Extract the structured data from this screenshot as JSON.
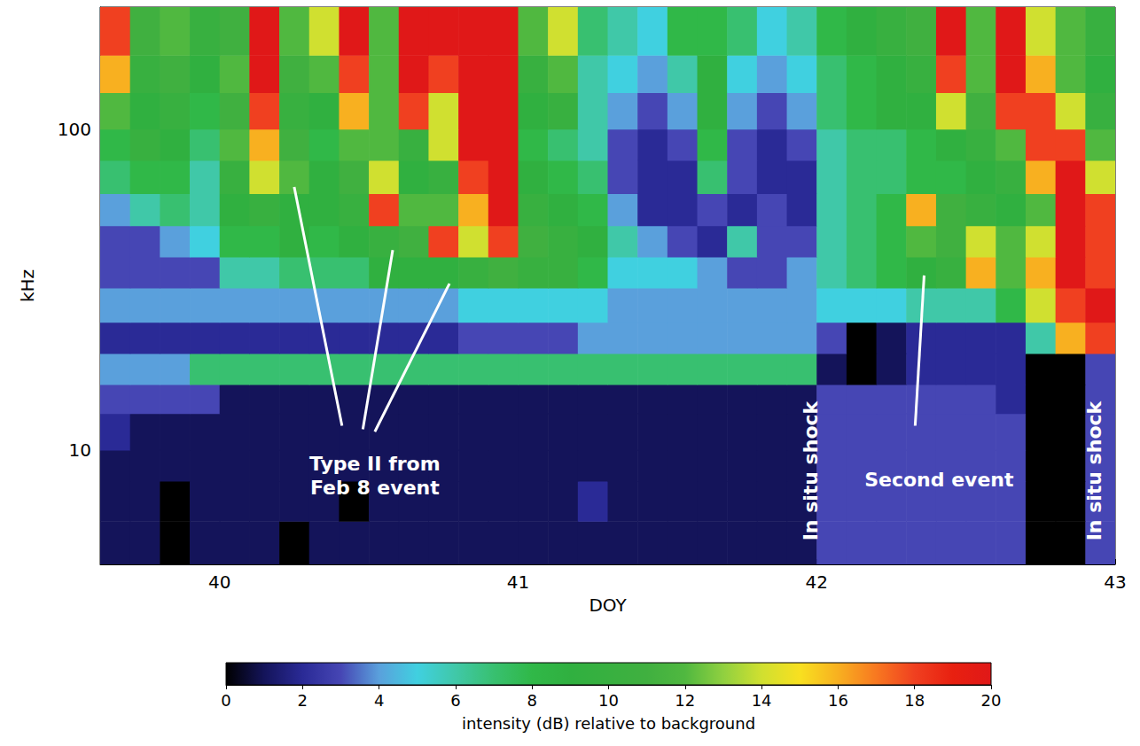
{
  "chart_data": {
    "type": "heatmap",
    "xlabel": "DOY",
    "ylabel": "kHz",
    "log": "y",
    "grid": false,
    "xlim": [
      39.6,
      43
    ],
    "ylim": [
      4.4,
      240
    ],
    "xticks": [
      40,
      41,
      42,
      43
    ],
    "yticks": [
      10,
      100
    ],
    "x": [
      39.6,
      39.7,
      39.8,
      39.9,
      40.0,
      40.1,
      40.2,
      40.3,
      40.4,
      40.5,
      40.6,
      40.7,
      40.8,
      40.9,
      41.0,
      41.1,
      41.2,
      41.3,
      41.4,
      41.5,
      41.6,
      41.7,
      41.8,
      41.9,
      42.0,
      42.1,
      42.2,
      42.3,
      42.4,
      42.5,
      42.6,
      42.7,
      42.8,
      42.9,
      43.0
    ],
    "y": [
      4.4,
      6,
      8,
      10,
      13,
      16,
      20,
      25,
      32,
      40,
      50,
      63,
      80,
      100,
      130,
      170,
      240
    ],
    "cells": [
      [
        1,
        1,
        0,
        1,
        1,
        1,
        0,
        1,
        1,
        1,
        1,
        1,
        1,
        1,
        1,
        1,
        1,
        1,
        1,
        1,
        1,
        1,
        1,
        1,
        3,
        3,
        3,
        3,
        3,
        3,
        3,
        0,
        0,
        3
      ],
      [
        1,
        1,
        0,
        1,
        1,
        1,
        1,
        1,
        0,
        1,
        1,
        1,
        1,
        1,
        1,
        1,
        2,
        1,
        1,
        1,
        1,
        1,
        1,
        1,
        3,
        3,
        3,
        3,
        3,
        3,
        3,
        0,
        0,
        3
      ],
      [
        1,
        1,
        1,
        1,
        1,
        1,
        1,
        1,
        1,
        1,
        1,
        1,
        1,
        1,
        1,
        1,
        1,
        1,
        1,
        1,
        1,
        1,
        1,
        1,
        3,
        3,
        3,
        3,
        3,
        3,
        3,
        0,
        0,
        3
      ],
      [
        2,
        1,
        1,
        1,
        1,
        1,
        1,
        1,
        1,
        1,
        1,
        1,
        1,
        1,
        1,
        1,
        1,
        1,
        1,
        1,
        1,
        1,
        1,
        1,
        3,
        3,
        3,
        3,
        3,
        3,
        3,
        0,
        0,
        3
      ],
      [
        3,
        3,
        3,
        3,
        1,
        1,
        1,
        1,
        1,
        1,
        1,
        1,
        1,
        1,
        1,
        1,
        1,
        1,
        1,
        1,
        1,
        1,
        1,
        1,
        3,
        3,
        3,
        3,
        3,
        3,
        2,
        0,
        0,
        3
      ],
      [
        4,
        4,
        4,
        7,
        7,
        7,
        7,
        7,
        7,
        7,
        7,
        7,
        7,
        7,
        7,
        7,
        7,
        7,
        7,
        7,
        7,
        7,
        7,
        7,
        1,
        0,
        1,
        2,
        2,
        2,
        2,
        0,
        0,
        3
      ],
      [
        2,
        2,
        2,
        2,
        2,
        2,
        2,
        2,
        2,
        2,
        2,
        2,
        3,
        3,
        3,
        3,
        4,
        4,
        4,
        4,
        4,
        4,
        4,
        4,
        3,
        0,
        1,
        2,
        2,
        2,
        2,
        6,
        16,
        18
      ],
      [
        4,
        4,
        4,
        4,
        4,
        4,
        4,
        4,
        4,
        4,
        4,
        4,
        5,
        5,
        5,
        5,
        5,
        4,
        4,
        4,
        4,
        4,
        4,
        4,
        5,
        5,
        5,
        6,
        6,
        6,
        8,
        14,
        18,
        20
      ],
      [
        3,
        3,
        3,
        3,
        6,
        6,
        7,
        7,
        7,
        9,
        9,
        9,
        10,
        11,
        10,
        10,
        8,
        5,
        5,
        5,
        4,
        3,
        3,
        4,
        6,
        7,
        8,
        9,
        10,
        16,
        12,
        16,
        20,
        18
      ],
      [
        3,
        3,
        4,
        5,
        8,
        8,
        9,
        8,
        9,
        10,
        11,
        18,
        14,
        18,
        11,
        10,
        9,
        6,
        4,
        3,
        2,
        6,
        3,
        3,
        6,
        7,
        8,
        12,
        11,
        14,
        12,
        14,
        20,
        18
      ],
      [
        4,
        6,
        7,
        6,
        9,
        10,
        9,
        9,
        10,
        18,
        12,
        12,
        16,
        20,
        10,
        9,
        8,
        4,
        2,
        2,
        3,
        2,
        3,
        2,
        6,
        7,
        8,
        16,
        11,
        10,
        9,
        12,
        20,
        18
      ],
      [
        7,
        8,
        8,
        6,
        10,
        14,
        12,
        9,
        11,
        14,
        9,
        10,
        18,
        20,
        9,
        8,
        7,
        3,
        2,
        2,
        7,
        3,
        2,
        2,
        6,
        7,
        7,
        8,
        8,
        9,
        10,
        16,
        20,
        14
      ],
      [
        8,
        10,
        9,
        7,
        12,
        16,
        11,
        8,
        12,
        12,
        10,
        14,
        20,
        20,
        8,
        7,
        6,
        3,
        2,
        3,
        8,
        3,
        2,
        3,
        6,
        7,
        7,
        8,
        9,
        10,
        12,
        18,
        18,
        12
      ],
      [
        12,
        9,
        10,
        8,
        11,
        18,
        10,
        9,
        16,
        12,
        18,
        14,
        20,
        20,
        9,
        10,
        6,
        4,
        3,
        4,
        9,
        4,
        3,
        4,
        7,
        8,
        9,
        9,
        14,
        11,
        18,
        18,
        14,
        10
      ],
      [
        16,
        10,
        11,
        9,
        12,
        20,
        11,
        12,
        18,
        12,
        20,
        18,
        20,
        20,
        10,
        12,
        6,
        5,
        4,
        6,
        9,
        5,
        4,
        5,
        7,
        8,
        9,
        10,
        18,
        12,
        20,
        16,
        12,
        9
      ],
      [
        18,
        11,
        12,
        10,
        11,
        20,
        12,
        14,
        20,
        12,
        20,
        20,
        20,
        20,
        12,
        14,
        7,
        6,
        5,
        8,
        8,
        7,
        5,
        6,
        8,
        9,
        10,
        11,
        20,
        12,
        20,
        14,
        12,
        10
      ]
    ],
    "colorbar": {
      "label": "intensity (dB) relative to background",
      "range": [
        0,
        20
      ],
      "ticks": [
        0,
        2,
        4,
        6,
        8,
        10,
        12,
        14,
        16,
        18,
        20
      ]
    },
    "annotations": [
      {
        "text": "Type II from\nFeb 8 event",
        "x": 40.52,
        "y": 8.3,
        "pointers": [
          [
            [
              40.41,
              11.9
            ],
            [
              40.25,
              66
            ]
          ],
          [
            [
              40.48,
              11.6
            ],
            [
              40.58,
              42
            ]
          ],
          [
            [
              40.52,
              11.4
            ],
            [
              40.77,
              33
            ]
          ]
        ]
      },
      {
        "text": "In situ shock",
        "x": 41.98,
        "y": 8.6,
        "orientation": "vertical"
      },
      {
        "text": "Second event",
        "x": 42.41,
        "y": 8.1,
        "pointers": [
          [
            [
              42.33,
              11.9
            ],
            [
              42.36,
              35
            ]
          ]
        ]
      },
      {
        "text": "In situ shock",
        "x": 42.93,
        "y": 8.6,
        "orientation": "vertical"
      }
    ]
  }
}
